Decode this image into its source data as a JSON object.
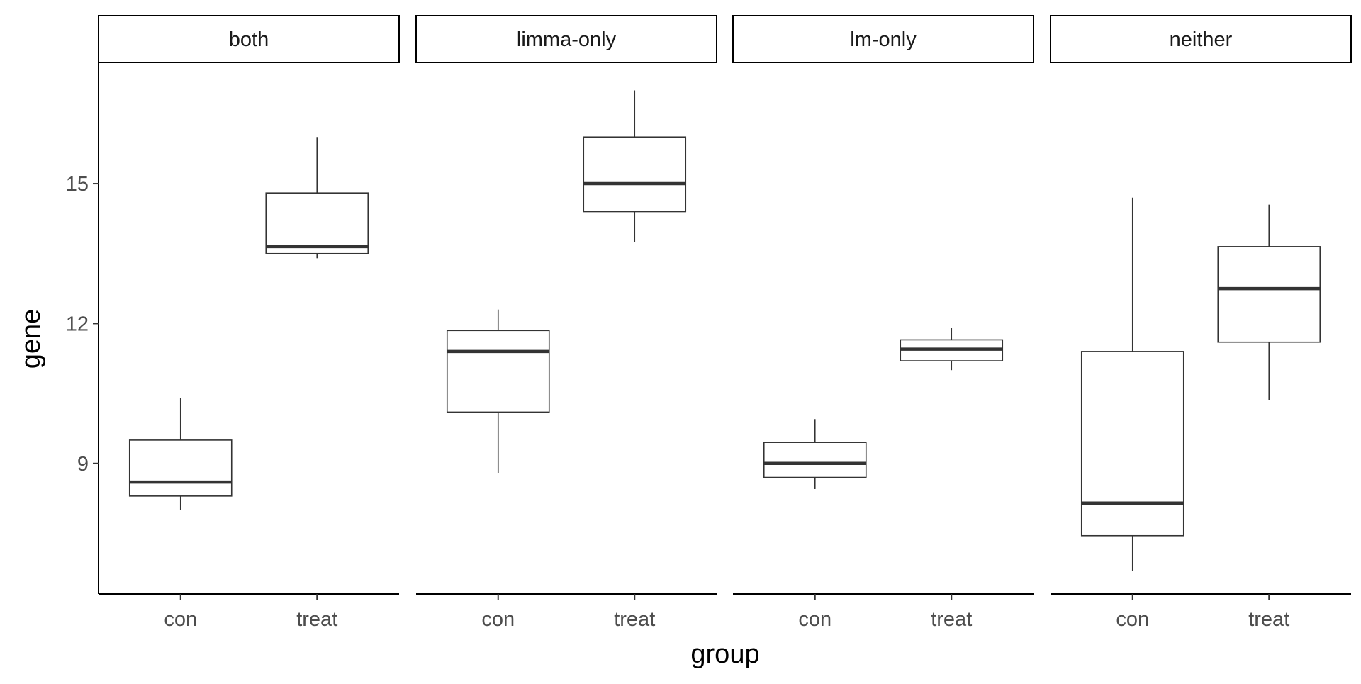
{
  "chart_data": {
    "type": "boxplot",
    "xlabel": "group",
    "ylabel": "gene",
    "categories": [
      "con",
      "treat"
    ],
    "y_ticks": [
      9,
      12,
      15
    ],
    "ylim": [
      6.2,
      17.6
    ],
    "grid": false,
    "facets": [
      {
        "label": "both",
        "boxes": [
          {
            "group": "con",
            "min": 8.0,
            "q1": 8.3,
            "median": 8.6,
            "q3": 9.5,
            "max": 10.4
          },
          {
            "group": "treat",
            "min": 13.4,
            "q1": 13.5,
            "median": 13.65,
            "q3": 14.8,
            "max": 16.0
          }
        ]
      },
      {
        "label": "limma-only",
        "boxes": [
          {
            "group": "con",
            "min": 8.8,
            "q1": 10.1,
            "median": 11.4,
            "q3": 11.85,
            "max": 12.3
          },
          {
            "group": "treat",
            "min": 13.75,
            "q1": 14.4,
            "median": 15.0,
            "q3": 16.0,
            "max": 17.0
          }
        ]
      },
      {
        "label": "lm-only",
        "boxes": [
          {
            "group": "con",
            "min": 8.45,
            "q1": 8.7,
            "median": 9.0,
            "q3": 9.45,
            "max": 9.95
          },
          {
            "group": "treat",
            "min": 11.0,
            "q1": 11.2,
            "median": 11.45,
            "q3": 11.65,
            "max": 11.9
          }
        ]
      },
      {
        "label": "neither",
        "boxes": [
          {
            "group": "con",
            "min": 6.7,
            "q1": 7.45,
            "median": 8.15,
            "q3": 11.4,
            "max": 14.7
          },
          {
            "group": "treat",
            "min": 10.35,
            "q1": 11.6,
            "median": 12.75,
            "q3": 13.65,
            "max": 14.55
          }
        ]
      }
    ]
  }
}
